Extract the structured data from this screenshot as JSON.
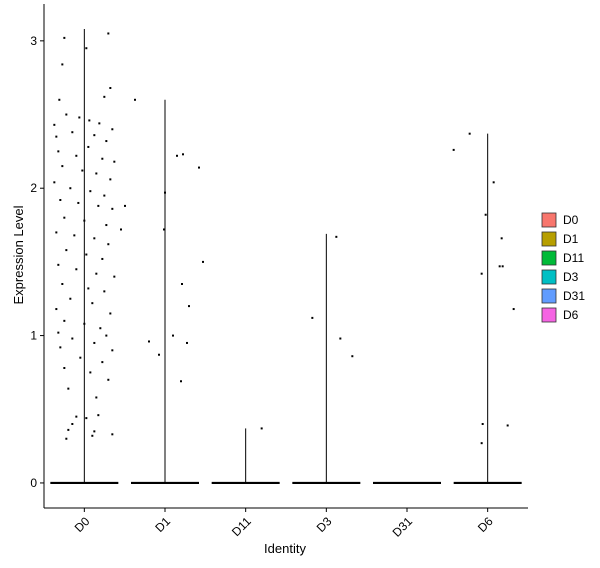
{
  "chart_data": {
    "type": "violin",
    "xlabel": "Identity",
    "ylabel": "Expression Level",
    "categories": [
      "D0",
      "D1",
      "D11",
      "D3",
      "D31",
      "D6"
    ],
    "ylim": [
      -0.17,
      3.25
    ],
    "yticks": [
      0,
      1,
      2,
      3
    ],
    "legend": {
      "position": "right",
      "entries": [
        "D0",
        "D1",
        "D11",
        "D3",
        "D31",
        "D6"
      ]
    },
    "colors": {
      "D0": "#F8766D",
      "D1": "#B79F00",
      "D11": "#00BA38",
      "D3": "#00BFC4",
      "D31": "#619CFF",
      "D6": "#F564E3"
    },
    "max_expression": {
      "D0": 3.08,
      "D1": 2.6,
      "D11": 0.37,
      "D3": 1.69,
      "D31": 0.0,
      "D6": 2.37
    },
    "points": {
      "D0": [
        [
          -0.2,
          3.02
        ],
        [
          0.02,
          2.95
        ],
        [
          0.24,
          3.05
        ],
        [
          -0.22,
          2.84
        ],
        [
          -0.25,
          2.6
        ],
        [
          0.2,
          2.62
        ],
        [
          0.26,
          2.68
        ],
        [
          -0.3,
          2.43
        ],
        [
          -0.18,
          2.5
        ],
        [
          -0.05,
          2.48
        ],
        [
          0.05,
          2.46
        ],
        [
          0.15,
          2.44
        ],
        [
          0.28,
          2.4
        ],
        [
          -0.28,
          2.35
        ],
        [
          -0.12,
          2.38
        ],
        [
          0.1,
          2.36
        ],
        [
          0.22,
          2.32
        ],
        [
          -0.26,
          2.25
        ],
        [
          -0.08,
          2.22
        ],
        [
          0.04,
          2.28
        ],
        [
          0.18,
          2.2
        ],
        [
          0.3,
          2.18
        ],
        [
          -0.22,
          2.15
        ],
        [
          -0.02,
          2.12
        ],
        [
          0.12,
          2.1
        ],
        [
          0.26,
          2.06
        ],
        [
          -0.3,
          2.04
        ],
        [
          -0.14,
          2.0
        ],
        [
          0.06,
          1.98
        ],
        [
          0.2,
          1.95
        ],
        [
          -0.24,
          1.92
        ],
        [
          -0.06,
          1.9
        ],
        [
          0.14,
          1.88
        ],
        [
          0.28,
          1.86
        ],
        [
          -0.2,
          1.8
        ],
        [
          0.0,
          1.78
        ],
        [
          0.22,
          1.75
        ],
        [
          -0.28,
          1.7
        ],
        [
          -0.1,
          1.68
        ],
        [
          0.1,
          1.66
        ],
        [
          0.24,
          1.62
        ],
        [
          -0.18,
          1.58
        ],
        [
          0.02,
          1.55
        ],
        [
          0.18,
          1.52
        ],
        [
          -0.26,
          1.48
        ],
        [
          -0.08,
          1.45
        ],
        [
          0.12,
          1.42
        ],
        [
          0.3,
          1.4
        ],
        [
          -0.22,
          1.35
        ],
        [
          0.04,
          1.32
        ],
        [
          0.2,
          1.3
        ],
        [
          -0.14,
          1.25
        ],
        [
          0.08,
          1.22
        ],
        [
          -0.28,
          1.18
        ],
        [
          0.26,
          1.15
        ],
        [
          -0.2,
          1.1
        ],
        [
          0.0,
          1.08
        ],
        [
          0.16,
          1.05
        ],
        [
          -0.26,
          1.02
        ],
        [
          0.22,
          1.0
        ],
        [
          -0.12,
          0.98
        ],
        [
          0.1,
          0.95
        ],
        [
          -0.24,
          0.92
        ],
        [
          0.28,
          0.9
        ],
        [
          -0.04,
          0.85
        ],
        [
          0.18,
          0.82
        ],
        [
          -0.2,
          0.78
        ],
        [
          0.06,
          0.75
        ],
        [
          0.24,
          0.7
        ],
        [
          -0.16,
          0.64
        ],
        [
          0.12,
          0.58
        ],
        [
          -0.08,
          0.45
        ],
        [
          0.02,
          0.44
        ],
        [
          0.14,
          0.46
        ],
        [
          -0.12,
          0.4
        ],
        [
          -0.16,
          0.36
        ],
        [
          0.1,
          0.35
        ],
        [
          -0.18,
          0.3
        ],
        [
          0.08,
          0.32
        ],
        [
          0.28,
          0.33
        ]
      ],
      "D1": [
        [
          -0.3,
          2.6
        ],
        [
          -0.4,
          1.88
        ],
        [
          -0.44,
          1.72
        ],
        [
          0.0,
          1.97
        ],
        [
          0.12,
          2.22
        ],
        [
          0.18,
          2.23
        ],
        [
          0.34,
          2.14
        ],
        [
          -0.01,
          1.72
        ],
        [
          0.17,
          1.35
        ],
        [
          0.24,
          1.2
        ],
        [
          0.38,
          1.5
        ],
        [
          0.08,
          1.0
        ],
        [
          -0.16,
          0.96
        ],
        [
          0.22,
          0.95
        ],
        [
          -0.06,
          0.87
        ],
        [
          0.16,
          0.69
        ]
      ],
      "D11": [
        [
          0.16,
          0.37
        ]
      ],
      "D3": [
        [
          -0.14,
          1.12
        ],
        [
          0.1,
          1.67
        ],
        [
          0.14,
          0.98
        ],
        [
          0.26,
          0.86
        ]
      ],
      "D31": [],
      "D6": [
        [
          -0.34,
          2.26
        ],
        [
          -0.18,
          2.37
        ],
        [
          0.06,
          2.04
        ],
        [
          0.14,
          1.66
        ],
        [
          0.15,
          1.47
        ],
        [
          0.12,
          1.47
        ],
        [
          -0.02,
          1.82
        ],
        [
          -0.06,
          1.42
        ],
        [
          0.26,
          1.18
        ],
        [
          -0.05,
          0.4
        ],
        [
          0.2,
          0.39
        ],
        [
          -0.06,
          0.27
        ]
      ]
    }
  }
}
